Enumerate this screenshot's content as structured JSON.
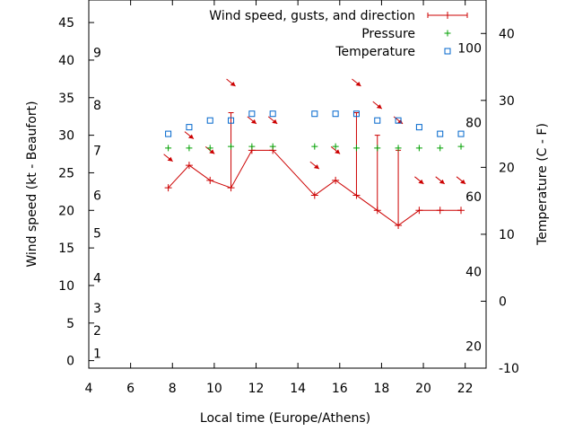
{
  "chart_data": {
    "type": "line",
    "xlabel": "Local time (Europe/Athens)",
    "ylabel": "Wind speed (kt - Beaufort)",
    "y2label": "Temperature (C - F)",
    "xlim": [
      4,
      23
    ],
    "ylim": [
      -1,
      48
    ],
    "y2lim": [
      -10,
      45
    ],
    "x_ticks": [
      4,
      6,
      8,
      10,
      12,
      14,
      16,
      18,
      20,
      22
    ],
    "y_ticks": [
      0,
      5,
      10,
      15,
      20,
      25,
      30,
      35,
      40,
      45
    ],
    "y2_ticks": [
      -10,
      0,
      10,
      20,
      30,
      40
    ],
    "beaufort_labels": [
      {
        "label": "1",
        "kt": 1
      },
      {
        "label": "2",
        "kt": 4
      },
      {
        "label": "3",
        "kt": 7
      },
      {
        "label": "4",
        "kt": 11
      },
      {
        "label": "5",
        "kt": 17
      },
      {
        "label": "6",
        "kt": 22
      },
      {
        "label": "7",
        "kt": 28
      },
      {
        "label": "8",
        "kt": 34
      },
      {
        "label": "9",
        "kt": 41
      }
    ],
    "fahrenheit_labels": [
      {
        "label": "20",
        "c": -6.7
      },
      {
        "label": "40",
        "c": 4.4
      },
      {
        "label": "60",
        "c": 15.6
      },
      {
        "label": "80",
        "c": 26.7
      },
      {
        "label": "100",
        "c": 37.8
      }
    ],
    "legend": [
      {
        "label": "Wind speed, gusts, and direction",
        "color": "#cc0000",
        "symbol": "errorline"
      },
      {
        "label": "Pressure",
        "color": "#00a000",
        "symbol": "plus"
      },
      {
        "label": "Temperature",
        "color": "#0066cc",
        "symbol": "square"
      }
    ],
    "series": [
      {
        "name": "Wind speed, gusts, and direction",
        "x": [
          7.8,
          8.8,
          9.8,
          10.8,
          11.8,
          12.8,
          14.8,
          15.8,
          16.8,
          17.8,
          18.8,
          19.8,
          20.8,
          21.8
        ],
        "values": [
          23,
          26,
          24,
          23,
          28,
          28,
          22,
          24,
          22,
          20,
          18,
          20,
          20,
          20
        ],
        "gusts": [
          23,
          26,
          24,
          33,
          28,
          28,
          22,
          24,
          33,
          30,
          28,
          20,
          20,
          20
        ]
      },
      {
        "name": "Pressure",
        "x": [
          7.8,
          8.8,
          9.8,
          10.8,
          11.8,
          12.8,
          14.8,
          15.8,
          16.8,
          17.8,
          18.8,
          19.8,
          20.8,
          21.8
        ],
        "values": [
          28.3,
          28.3,
          28.3,
          28.5,
          28.5,
          28.5,
          28.5,
          28.5,
          28.3,
          28.3,
          28.3,
          28.3,
          28.3,
          28.5
        ]
      },
      {
        "name": "Temperature",
        "x": [
          7.8,
          8.8,
          9.8,
          10.8,
          11.8,
          12.8,
          14.8,
          15.8,
          16.8,
          17.8,
          18.8,
          19.8,
          20.8,
          21.8
        ],
        "values": [
          25,
          26,
          27,
          27,
          28,
          28,
          28,
          28,
          28,
          27,
          27,
          26,
          25,
          25
        ]
      }
    ],
    "wind_arrows": [
      {
        "x": 7.8,
        "y": 27
      },
      {
        "x": 8.8,
        "y": 30
      },
      {
        "x": 9.8,
        "y": 28
      },
      {
        "x": 10.8,
        "y": 37
      },
      {
        "x": 11.8,
        "y": 32
      },
      {
        "x": 12.8,
        "y": 32
      },
      {
        "x": 14.8,
        "y": 26
      },
      {
        "x": 15.8,
        "y": 28
      },
      {
        "x": 16.8,
        "y": 37
      },
      {
        "x": 17.8,
        "y": 34
      },
      {
        "x": 18.8,
        "y": 32
      },
      {
        "x": 19.8,
        "y": 24
      },
      {
        "x": 20.8,
        "y": 24
      },
      {
        "x": 21.8,
        "y": 24
      }
    ]
  }
}
